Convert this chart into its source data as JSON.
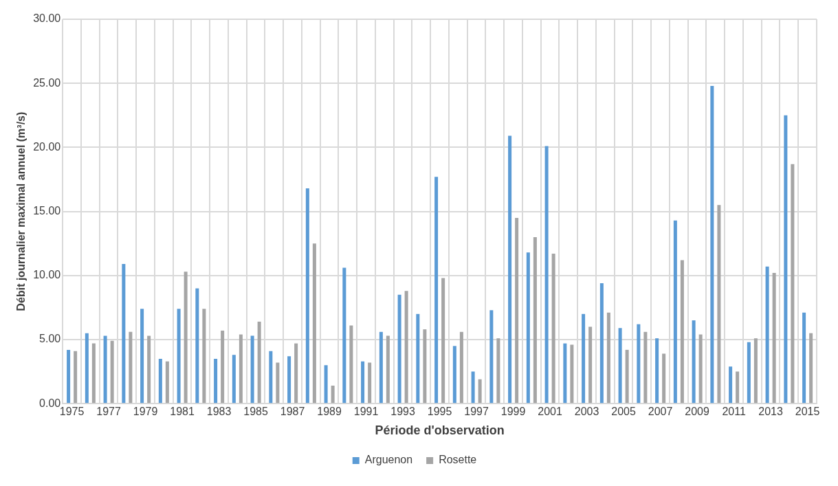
{
  "chart_data": {
    "type": "bar",
    "xlabel": "Période d'observation",
    "ylabel": "Débit journalier maximal annuel (m³/s)",
    "categories": [
      "1975",
      null,
      "1977",
      null,
      "1979",
      null,
      "1981",
      null,
      "1983",
      null,
      "1985",
      null,
      "1987",
      null,
      "1989",
      null,
      "1991",
      null,
      "1993",
      null,
      "1995",
      null,
      "1997",
      null,
      "1999",
      null,
      "2001",
      null,
      "2003",
      null,
      "2005",
      null,
      "2007",
      null,
      "2009",
      null,
      "2011",
      null,
      "2013",
      null,
      "2015"
    ],
    "series": [
      {
        "name": "Arguenon",
        "color": "#5b9bd5",
        "values": [
          4.2,
          5.5,
          5.3,
          10.9,
          7.4,
          3.5,
          7.4,
          9.0,
          3.5,
          3.8,
          5.3,
          4.1,
          3.7,
          16.8,
          3.0,
          10.6,
          3.3,
          5.6,
          8.5,
          7.0,
          17.7,
          4.5,
          2.5,
          7.3,
          20.9,
          11.8,
          20.1,
          4.7,
          7.0,
          9.4,
          5.9,
          6.2,
          5.1,
          14.3,
          6.5,
          24.8,
          2.9,
          4.8,
          10.7,
          22.5,
          7.1
        ]
      },
      {
        "name": "Rosette",
        "color": "#a5a5a5",
        "values": [
          4.1,
          4.7,
          4.9,
          5.6,
          5.3,
          3.3,
          10.3,
          7.4,
          5.7,
          5.4,
          6.4,
          3.2,
          4.7,
          12.5,
          1.4,
          6.1,
          3.2,
          5.3,
          8.8,
          5.8,
          9.8,
          5.6,
          1.9,
          5.1,
          14.5,
          13.0,
          11.7,
          4.6,
          6.0,
          7.1,
          4.2,
          5.6,
          3.9,
          11.2,
          5.4,
          15.5,
          2.5,
          5.1,
          10.2,
          18.7,
          5.5
        ]
      }
    ],
    "ylim": [
      0,
      30
    ],
    "yticks": [
      {
        "value": 0,
        "label": "0.00"
      },
      {
        "value": 5,
        "label": "5.00"
      },
      {
        "value": 10,
        "label": "10.00"
      },
      {
        "value": 15,
        "label": "15.00"
      },
      {
        "value": 20,
        "label": "20.00"
      },
      {
        "value": 25,
        "label": "25.00"
      },
      {
        "value": 30,
        "label": "30.00"
      }
    ],
    "grid": true,
    "legend": "bottom"
  }
}
